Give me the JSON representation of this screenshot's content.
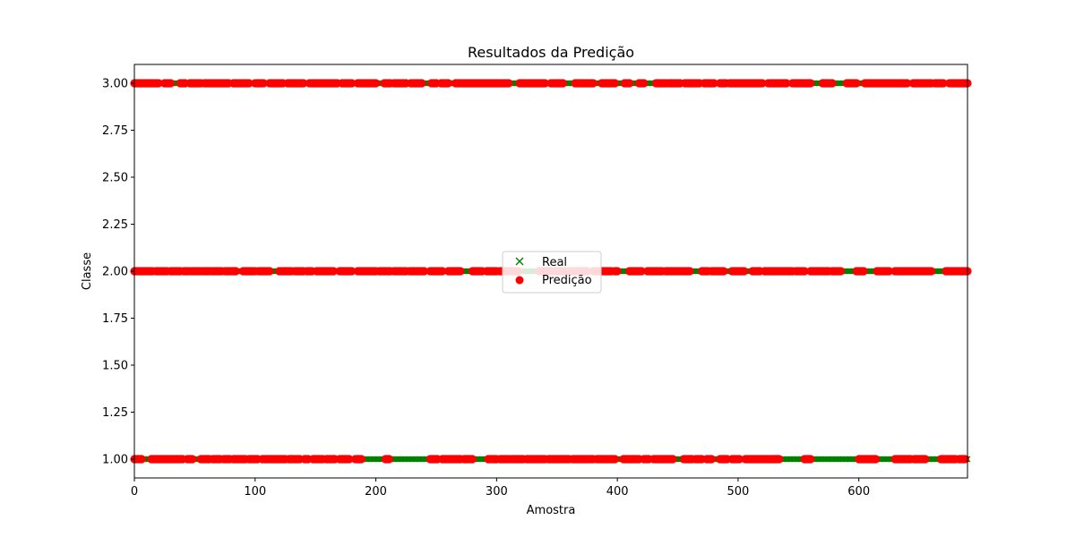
{
  "chart_data": {
    "type": "scatter",
    "title": "Resultados da Predição",
    "xlabel": "Amostra",
    "ylabel": "Classe",
    "xlim": [
      0,
      690
    ],
    "ylim": [
      0.9,
      3.1
    ],
    "x_ticks": [
      0,
      100,
      200,
      300,
      400,
      500,
      600
    ],
    "x_tick_labels": [
      "0",
      "100",
      "200",
      "300",
      "400",
      "500",
      "600"
    ],
    "y_ticks": [
      1.0,
      1.25,
      1.5,
      1.75,
      2.0,
      2.25,
      2.5,
      2.75,
      3.0
    ],
    "y_tick_labels": [
      "1.00",
      "1.25",
      "1.50",
      "1.75",
      "2.00",
      "2.25",
      "2.50",
      "2.75",
      "3.00"
    ],
    "grid": false,
    "legend_position": "center",
    "series": [
      {
        "name": "Real",
        "marker": "x",
        "color": "#008000"
      },
      {
        "name": "Predição",
        "marker": "o",
        "color": "#ff0000"
      }
    ],
    "classes": [
      1,
      2,
      3
    ],
    "prediction_ranges": {
      "1": [
        [
          0,
          6
        ],
        [
          14,
          40
        ],
        [
          44,
          48
        ],
        [
          55,
          62
        ],
        [
          65,
          71
        ],
        [
          74,
          79
        ],
        [
          82,
          92
        ],
        [
          95,
          102
        ],
        [
          106,
          125
        ],
        [
          128,
          137
        ],
        [
          141,
          144
        ],
        [
          148,
          156
        ],
        [
          159,
          166
        ],
        [
          170,
          178
        ],
        [
          183,
          188
        ],
        [
          208,
          211
        ],
        [
          245,
          251
        ],
        [
          255,
          270
        ],
        [
          273,
          280
        ],
        [
          293,
          300
        ],
        [
          303,
          310
        ],
        [
          312,
          322
        ],
        [
          325,
          340
        ],
        [
          343,
          360
        ],
        [
          363,
          380
        ],
        [
          383,
          398
        ],
        [
          405,
          418
        ],
        [
          422,
          426
        ],
        [
          430,
          446
        ],
        [
          455,
          462
        ],
        [
          465,
          470
        ],
        [
          474,
          478
        ],
        [
          485,
          491
        ],
        [
          495,
          501
        ],
        [
          506,
          534
        ],
        [
          555,
          560
        ],
        [
          600,
          614
        ],
        [
          630,
          643
        ],
        [
          646,
          655
        ],
        [
          668,
          680
        ],
        [
          683,
          688
        ]
      ],
      "2": [
        [
          0,
          15
        ],
        [
          18,
          27
        ],
        [
          30,
          38
        ],
        [
          41,
          45
        ],
        [
          47,
          55
        ],
        [
          57,
          62
        ],
        [
          64,
          72
        ],
        [
          75,
          84
        ],
        [
          90,
          100
        ],
        [
          103,
          112
        ],
        [
          120,
          130
        ],
        [
          133,
          140
        ],
        [
          143,
          147
        ],
        [
          151,
          165
        ],
        [
          170,
          180
        ],
        [
          185,
          200
        ],
        [
          203,
          212
        ],
        [
          215,
          225
        ],
        [
          228,
          240
        ],
        [
          245,
          255
        ],
        [
          260,
          270
        ],
        [
          280,
          288
        ],
        [
          292,
          300
        ],
        [
          303,
          318
        ],
        [
          335,
          345
        ],
        [
          348,
          357
        ],
        [
          360,
          375
        ],
        [
          380,
          395
        ],
        [
          398,
          400
        ],
        [
          410,
          420
        ],
        [
          425,
          437
        ],
        [
          440,
          460
        ],
        [
          470,
          475
        ],
        [
          478,
          488
        ],
        [
          495,
          505
        ],
        [
          512,
          518
        ],
        [
          522,
          530
        ],
        [
          530,
          545
        ],
        [
          548,
          555
        ],
        [
          560,
          575
        ],
        [
          578,
          585
        ],
        [
          598,
          604
        ],
        [
          615,
          625
        ],
        [
          630,
          660
        ],
        [
          672,
          690
        ]
      ],
      "3": [
        [
          0,
          20
        ],
        [
          25,
          30
        ],
        [
          38,
          42
        ],
        [
          46,
          55
        ],
        [
          58,
          78
        ],
        [
          82,
          95
        ],
        [
          100,
          107
        ],
        [
          112,
          123
        ],
        [
          127,
          140
        ],
        [
          145,
          168
        ],
        [
          172,
          180
        ],
        [
          185,
          200
        ],
        [
          207,
          212
        ],
        [
          215,
          225
        ],
        [
          229,
          238
        ],
        [
          246,
          250
        ],
        [
          254,
          260
        ],
        [
          266,
          310
        ],
        [
          319,
          340
        ],
        [
          345,
          355
        ],
        [
          365,
          380
        ],
        [
          387,
          398
        ],
        [
          406,
          410
        ],
        [
          418,
          422
        ],
        [
          432,
          440
        ],
        [
          442,
          452
        ],
        [
          456,
          468
        ],
        [
          472,
          480
        ],
        [
          485,
          490
        ],
        [
          493,
          520
        ],
        [
          525,
          540
        ],
        [
          545,
          560
        ],
        [
          570,
          578
        ],
        [
          590,
          598
        ],
        [
          605,
          640
        ],
        [
          645,
          660
        ],
        [
          663,
          670
        ],
        [
          675,
          690
        ]
      ]
    }
  }
}
